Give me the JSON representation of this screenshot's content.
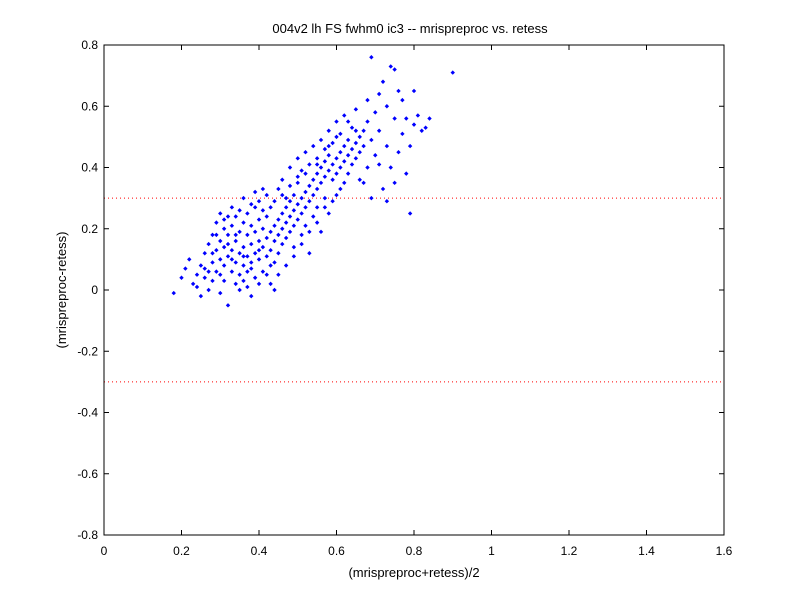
{
  "chart_data": {
    "type": "scatter",
    "title": "004v2 lh FS fwhm0 ic3 -- mrispreproc vs. retess",
    "xlabel": "(mrispreproc+retess)/2",
    "ylabel": "(mrispreproc-retess)",
    "xlim": [
      0,
      1.6
    ],
    "ylim": [
      -0.8,
      0.8
    ],
    "x_ticks": [
      "0",
      "0.2",
      "0.4",
      "0.6",
      "0.8",
      "1",
      "1.2",
      "1.4",
      "1.6"
    ],
    "y_ticks": [
      "-0.8",
      "-0.6",
      "-0.4",
      "-0.2",
      "0",
      "0.2",
      "0.4",
      "0.6",
      "0.8"
    ],
    "grid": false,
    "reference_lines": [
      0.3,
      -0.3
    ],
    "colors": {
      "points": "#0000ff",
      "reference_line": "#ff0000",
      "axes": "#000000"
    },
    "points": [
      [
        0.18,
        -0.01
      ],
      [
        0.2,
        0.04
      ],
      [
        0.21,
        0.07
      ],
      [
        0.22,
        0.1
      ],
      [
        0.23,
        0.02
      ],
      [
        0.24,
        0.01
      ],
      [
        0.24,
        0.05
      ],
      [
        0.25,
        0.08
      ],
      [
        0.25,
        -0.02
      ],
      [
        0.26,
        0.04
      ],
      [
        0.26,
        0.12
      ],
      [
        0.27,
        0.06
      ],
      [
        0.27,
        0.15
      ],
      [
        0.27,
        0.0
      ],
      [
        0.28,
        0.09
      ],
      [
        0.28,
        0.18
      ],
      [
        0.28,
        0.03
      ],
      [
        0.29,
        0.13
      ],
      [
        0.29,
        0.22
      ],
      [
        0.29,
        0.06
      ],
      [
        0.3,
        0.1
      ],
      [
        0.3,
        0.16
      ],
      [
        0.3,
        0.25
      ],
      [
        0.3,
        -0.01
      ],
      [
        0.31,
        0.08
      ],
      [
        0.31,
        0.14
      ],
      [
        0.31,
        0.2
      ],
      [
        0.31,
        0.03
      ],
      [
        0.32,
        0.11
      ],
      [
        0.32,
        0.18
      ],
      [
        0.32,
        0.24
      ],
      [
        0.32,
        -0.05
      ],
      [
        0.33,
        0.06
      ],
      [
        0.33,
        0.13
      ],
      [
        0.33,
        0.21
      ],
      [
        0.33,
        0.27
      ],
      [
        0.34,
        0.09
      ],
      [
        0.34,
        0.16
      ],
      [
        0.34,
        0.02
      ],
      [
        0.35,
        0.12
      ],
      [
        0.35,
        0.19
      ],
      [
        0.35,
        0.26
      ],
      [
        0.35,
        0.05
      ],
      [
        0.36,
        0.14
      ],
      [
        0.36,
        0.22
      ],
      [
        0.36,
        0.08
      ],
      [
        0.36,
        0.3
      ],
      [
        0.37,
        0.11
      ],
      [
        0.37,
        0.18
      ],
      [
        0.37,
        0.25
      ],
      [
        0.37,
        0.01
      ],
      [
        0.38,
        0.15
      ],
      [
        0.38,
        0.21
      ],
      [
        0.38,
        0.07
      ],
      [
        0.38,
        0.28
      ],
      [
        0.39,
        0.12
      ],
      [
        0.39,
        0.19
      ],
      [
        0.39,
        0.32
      ],
      [
        0.39,
        0.04
      ],
      [
        0.4,
        0.16
      ],
      [
        0.4,
        0.23
      ],
      [
        0.4,
        0.1
      ],
      [
        0.4,
        0.29
      ],
      [
        0.41,
        0.14
      ],
      [
        0.41,
        0.2
      ],
      [
        0.41,
        0.26
      ],
      [
        0.41,
        0.06
      ],
      [
        0.42,
        0.17
      ],
      [
        0.42,
        0.24
      ],
      [
        0.42,
        0.11
      ],
      [
        0.42,
        0.31
      ],
      [
        0.43,
        0.19
      ],
      [
        0.43,
        0.27
      ],
      [
        0.43,
        0.13
      ],
      [
        0.43,
        0.02
      ],
      [
        0.44,
        0.21
      ],
      [
        0.44,
        0.16
      ],
      [
        0.44,
        0.29
      ],
      [
        0.44,
        0.09
      ],
      [
        0.45,
        0.23
      ],
      [
        0.45,
        0.18
      ],
      [
        0.45,
        0.33
      ],
      [
        0.45,
        0.12
      ],
      [
        0.46,
        0.25
      ],
      [
        0.46,
        0.2
      ],
      [
        0.46,
        0.15
      ],
      [
        0.46,
        0.36
      ],
      [
        0.47,
        0.27
      ],
      [
        0.47,
        0.22
      ],
      [
        0.47,
        0.3
      ],
      [
        0.47,
        0.08
      ],
      [
        0.48,
        0.24
      ],
      [
        0.48,
        0.19
      ],
      [
        0.48,
        0.34
      ],
      [
        0.48,
        0.4
      ],
      [
        0.49,
        0.26
      ],
      [
        0.49,
        0.21
      ],
      [
        0.49,
        0.31
      ],
      [
        0.49,
        0.14
      ],
      [
        0.5,
        0.28
      ],
      [
        0.5,
        0.23
      ],
      [
        0.5,
        0.37
      ],
      [
        0.5,
        0.43
      ],
      [
        0.51,
        0.3
      ],
      [
        0.51,
        0.25
      ],
      [
        0.51,
        0.18
      ],
      [
        0.51,
        0.39
      ],
      [
        0.52,
        0.32
      ],
      [
        0.52,
        0.27
      ],
      [
        0.52,
        0.45
      ],
      [
        0.52,
        0.21
      ],
      [
        0.53,
        0.34
      ],
      [
        0.53,
        0.29
      ],
      [
        0.53,
        0.41
      ],
      [
        0.53,
        0.12
      ],
      [
        0.54,
        0.36
      ],
      [
        0.54,
        0.31
      ],
      [
        0.54,
        0.24
      ],
      [
        0.54,
        0.47
      ],
      [
        0.55,
        0.38
      ],
      [
        0.55,
        0.33
      ],
      [
        0.55,
        0.27
      ],
      [
        0.55,
        0.43
      ],
      [
        0.56,
        0.4
      ],
      [
        0.56,
        0.35
      ],
      [
        0.56,
        0.49
      ],
      [
        0.56,
        0.19
      ],
      [
        0.57,
        0.42
      ],
      [
        0.57,
        0.37
      ],
      [
        0.57,
        0.3
      ],
      [
        0.57,
        0.46
      ],
      [
        0.58,
        0.39
      ],
      [
        0.58,
        0.44
      ],
      [
        0.58,
        0.52
      ],
      [
        0.58,
        0.25
      ],
      [
        0.59,
        0.41
      ],
      [
        0.59,
        0.36
      ],
      [
        0.59,
        0.48
      ],
      [
        0.6,
        0.43
      ],
      [
        0.6,
        0.38
      ],
      [
        0.6,
        0.55
      ],
      [
        0.6,
        0.31
      ],
      [
        0.61,
        0.45
      ],
      [
        0.61,
        0.4
      ],
      [
        0.61,
        0.51
      ],
      [
        0.62,
        0.47
      ],
      [
        0.62,
        0.42
      ],
      [
        0.62,
        0.35
      ],
      [
        0.62,
        0.57
      ],
      [
        0.63,
        0.44
      ],
      [
        0.63,
        0.49
      ],
      [
        0.63,
        0.38
      ],
      [
        0.64,
        0.46
      ],
      [
        0.64,
        0.53
      ],
      [
        0.64,
        0.41
      ],
      [
        0.65,
        0.48
      ],
      [
        0.65,
        0.43
      ],
      [
        0.65,
        0.59
      ],
      [
        0.66,
        0.5
      ],
      [
        0.66,
        0.45
      ],
      [
        0.66,
        0.36
      ],
      [
        0.67,
        0.52
      ],
      [
        0.67,
        0.47
      ],
      [
        0.68,
        0.62
      ],
      [
        0.68,
        0.4
      ],
      [
        0.68,
        0.55
      ],
      [
        0.69,
        0.49
      ],
      [
        0.69,
        0.76
      ],
      [
        0.7,
        0.58
      ],
      [
        0.7,
        0.44
      ],
      [
        0.71,
        0.64
      ],
      [
        0.71,
        0.52
      ],
      [
        0.72,
        0.33
      ],
      [
        0.72,
        0.68
      ],
      [
        0.73,
        0.47
      ],
      [
        0.73,
        0.6
      ],
      [
        0.74,
        0.73
      ],
      [
        0.74,
        0.4
      ],
      [
        0.75,
        0.56
      ],
      [
        0.75,
        0.72
      ],
      [
        0.76,
        0.65
      ],
      [
        0.76,
        0.45
      ],
      [
        0.77,
        0.51
      ],
      [
        0.77,
        0.62
      ],
      [
        0.78,
        0.38
      ],
      [
        0.78,
        0.56
      ],
      [
        0.79,
        0.25
      ],
      [
        0.79,
        0.47
      ],
      [
        0.8,
        0.54
      ],
      [
        0.8,
        0.65
      ],
      [
        0.81,
        0.57
      ],
      [
        0.82,
        0.52
      ],
      [
        0.83,
        0.53
      ],
      [
        0.84,
        0.56
      ],
      [
        0.9,
        0.71
      ],
      [
        0.36,
        0.03
      ],
      [
        0.38,
        -0.02
      ],
      [
        0.31,
        0.23
      ],
      [
        0.29,
        0.18
      ],
      [
        0.33,
        0.1
      ],
      [
        0.35,
        0.0
      ],
      [
        0.37,
        0.06
      ],
      [
        0.4,
        0.02
      ],
      [
        0.42,
        0.05
      ],
      [
        0.44,
        0.0
      ],
      [
        0.34,
        0.24
      ],
      [
        0.39,
        0.27
      ],
      [
        0.41,
        0.33
      ],
      [
        0.46,
        0.31
      ],
      [
        0.48,
        0.29
      ],
      [
        0.5,
        0.35
      ],
      [
        0.52,
        0.38
      ],
      [
        0.55,
        0.41
      ],
      [
        0.58,
        0.47
      ],
      [
        0.6,
        0.5
      ],
      [
        0.63,
        0.55
      ],
      [
        0.65,
        0.52
      ],
      [
        0.47,
        0.17
      ],
      [
        0.49,
        0.11
      ],
      [
        0.51,
        0.15
      ],
      [
        0.53,
        0.19
      ],
      [
        0.55,
        0.22
      ],
      [
        0.57,
        0.27
      ],
      [
        0.59,
        0.29
      ],
      [
        0.61,
        0.33
      ],
      [
        0.43,
        0.08
      ],
      [
        0.45,
        0.05
      ],
      [
        0.26,
        0.07
      ],
      [
        0.28,
        0.12
      ],
      [
        0.3,
        0.05
      ],
      [
        0.32,
        0.15
      ],
      [
        0.34,
        0.18
      ],
      [
        0.36,
        0.11
      ],
      [
        0.38,
        0.09
      ],
      [
        0.4,
        0.13
      ],
      [
        0.67,
        0.35
      ],
      [
        0.69,
        0.3
      ],
      [
        0.71,
        0.41
      ],
      [
        0.73,
        0.29
      ],
      [
        0.75,
        0.35
      ]
    ]
  }
}
